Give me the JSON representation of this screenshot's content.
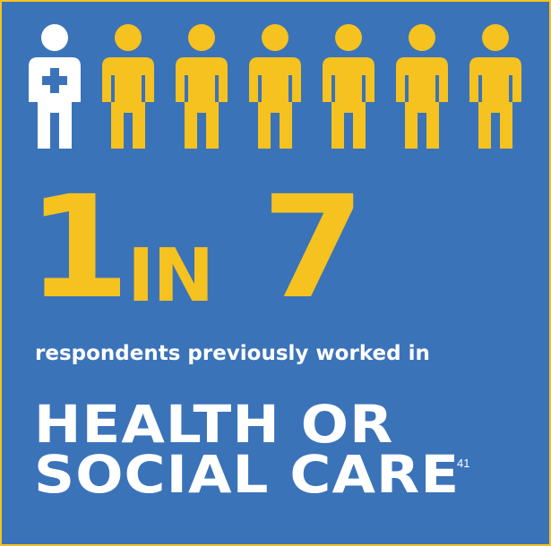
{
  "colors": {
    "background": "#3b73b9",
    "accent": "#f5c21f",
    "text": "#ffffff"
  },
  "figures": {
    "total": 7,
    "highlighted": 1,
    "highlighted_icon": "health-worker-icon",
    "other_icon": "person-icon"
  },
  "stat": {
    "numerator": "1",
    "connector": "IN",
    "denominator": "7"
  },
  "subtitle": "respondents previously worked in",
  "headline": {
    "line1": "HEALTH OR",
    "line2": "SOCIAL CARE"
  },
  "footnote_ref": "41"
}
